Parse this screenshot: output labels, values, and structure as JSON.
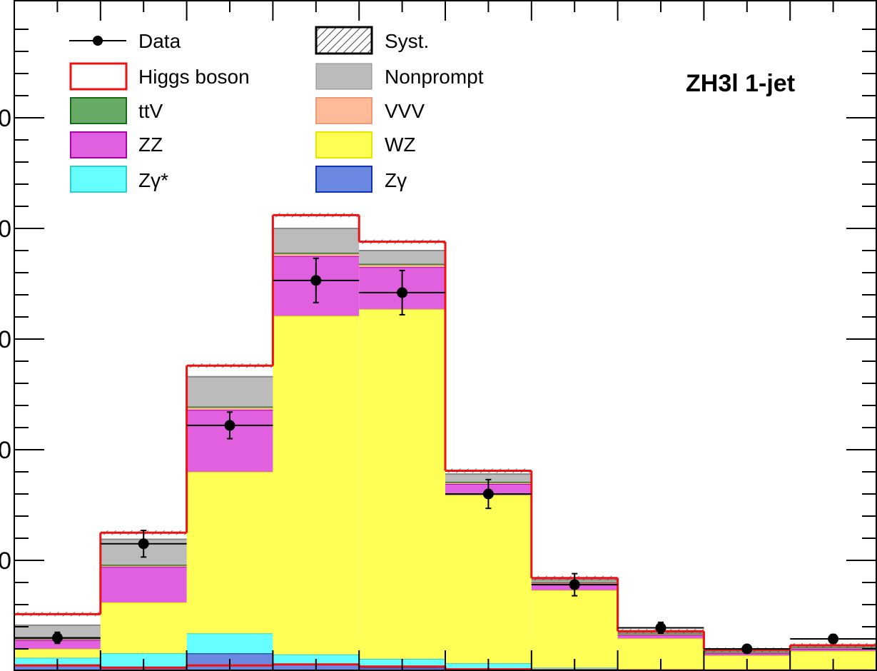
{
  "chart_data": {
    "type": "bar",
    "stacked": true,
    "title": "ZH3l 1-jet",
    "bins": 10,
    "y_visible_range": [
      0,
      30
    ],
    "y_tick_labels": [
      "0",
      "0",
      "0",
      "0",
      "0"
    ],
    "y_tick_values": [
      5,
      10,
      15,
      20,
      25
    ],
    "series": [
      {
        "name": "Zγ",
        "color": "#6a88e0",
        "edge": "#1030b0",
        "values": [
          0.3,
          0.2,
          0.8,
          0.3,
          0.15,
          0.1,
          0.05,
          0.02,
          0.0,
          0.0
        ]
      },
      {
        "name": "Zγ*",
        "color": "#66ffff",
        "edge": "#33cccc",
        "values": [
          0.3,
          0.6,
          0.9,
          0.45,
          0.4,
          0.25,
          0.1,
          0.05,
          0.0,
          0.0
        ]
      },
      {
        "name": "WZ",
        "color": "#ffff55",
        "edge": "#e6e600",
        "values": [
          0.4,
          2.3,
          7.3,
          15.3,
          15.8,
          7.6,
          3.5,
          1.4,
          0.7,
          0.9
        ]
      },
      {
        "name": "ZZ",
        "color": "#e060e0",
        "edge": "#aa00aa",
        "values": [
          0.4,
          1.6,
          2.8,
          2.7,
          1.9,
          0.5,
          0.3,
          0.15,
          0.1,
          0.1
        ]
      },
      {
        "name": "VVV",
        "color": "#ffbb99",
        "edge": "#ee9977",
        "values": [
          0.05,
          0.05,
          0.1,
          0.1,
          0.1,
          0.05,
          0.05,
          0.05,
          0.05,
          0.05
        ]
      },
      {
        "name": "ttV",
        "color": "#66aa66",
        "edge": "#1a6b1a",
        "values": [
          0.02,
          0.05,
          0.05,
          0.05,
          0.05,
          0.05,
          0.02,
          0.02,
          0.01,
          0.01
        ]
      },
      {
        "name": "Nonprompt",
        "color": "#bbbbbb",
        "edge": "#888888",
        "values": [
          0.6,
          1.15,
          1.35,
          1.1,
          0.6,
          0.35,
          0.1,
          0.05,
          0.05,
          0.05
        ]
      },
      {
        "name": "Higgs boson",
        "color": "none",
        "edge": "#ee1111",
        "values": [
          0.5,
          0.3,
          0.5,
          0.6,
          0.4,
          0.15,
          0.08,
          0.06,
          0.05,
          0.05
        ]
      }
    ],
    "data_points": {
      "name": "Data",
      "values": [
        1.5,
        5.75,
        11.1,
        17.65,
        17.1,
        8.0,
        3.9,
        1.95,
        1.0,
        1.45
      ],
      "errors": [
        0.25,
        0.6,
        0.6,
        1.0,
        1.0,
        0.65,
        0.5,
        0.25,
        0.15,
        0.2
      ]
    },
    "legend_extra": {
      "name": "Syst."
    }
  }
}
